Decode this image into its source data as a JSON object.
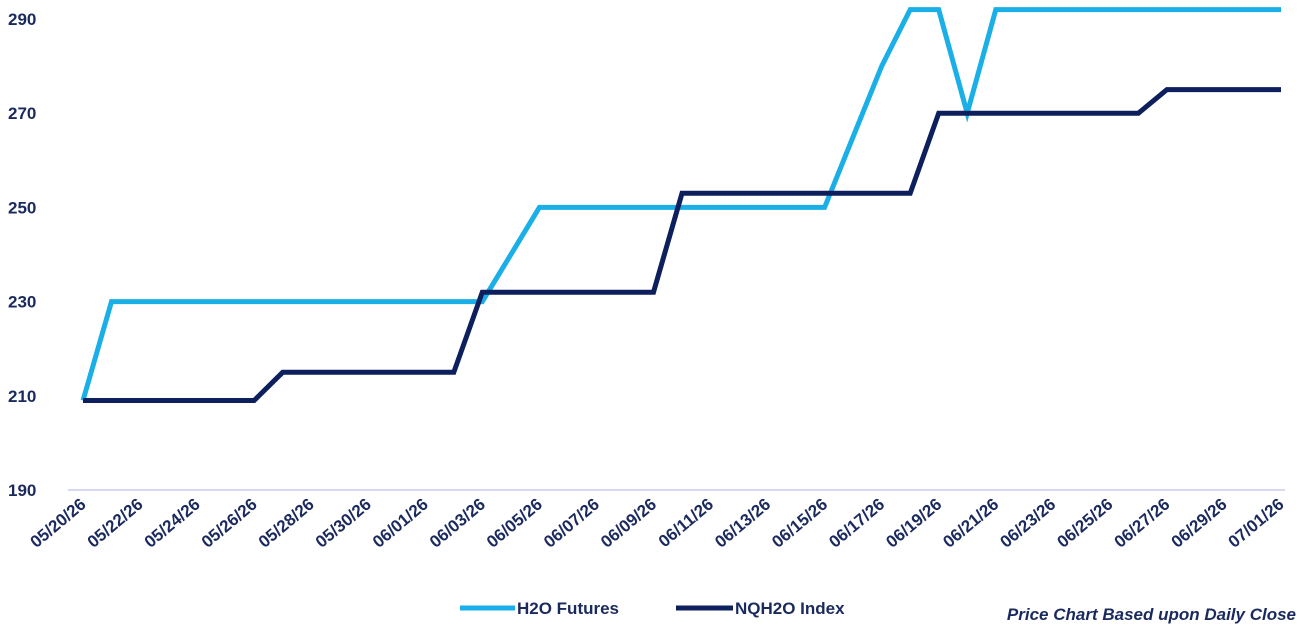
{
  "chart_data": {
    "type": "line",
    "x": [
      "05/20/26",
      "05/21/26",
      "05/22/26",
      "05/23/26",
      "05/24/26",
      "05/25/26",
      "05/26/26",
      "05/27/26",
      "05/28/26",
      "05/29/26",
      "05/30/26",
      "05/31/26",
      "06/01/26",
      "06/02/26",
      "06/03/26",
      "06/04/26",
      "06/05/26",
      "06/06/26",
      "06/07/26",
      "06/08/26",
      "06/09/26",
      "06/10/26",
      "06/11/26",
      "06/12/26",
      "06/13/26",
      "06/14/26",
      "06/15/26",
      "06/16/26",
      "06/17/26",
      "06/18/26",
      "06/19/26",
      "06/20/26",
      "06/21/26",
      "06/22/26",
      "06/23/26",
      "06/24/26",
      "06/25/26",
      "06/26/26",
      "06/27/26",
      "06/28/26",
      "06/29/26",
      "06/30/26",
      "07/01/26"
    ],
    "x_tick_labels": [
      "05/20/26",
      "05/22/26",
      "05/24/26",
      "05/26/26",
      "05/28/26",
      "05/30/26",
      "06/01/26",
      "06/03/26",
      "06/05/26",
      "06/07/26",
      "06/09/26",
      "06/11/26",
      "06/13/26",
      "06/15/26",
      "06/17/26",
      "06/19/26",
      "06/21/26",
      "06/23/26",
      "06/25/26",
      "06/27/26",
      "06/29/26",
      "07/01/26"
    ],
    "series": [
      {
        "name": "H2O  Futures",
        "color": "#1aafe6",
        "values": [
          209,
          230,
          230,
          230,
          230,
          230,
          230,
          230,
          230,
          230,
          230,
          230,
          230,
          230,
          230,
          240,
          250,
          250,
          250,
          250,
          250,
          250,
          250,
          250,
          250,
          250,
          250,
          265,
          280,
          292,
          292,
          270,
          292,
          292,
          292,
          292,
          292,
          292,
          292,
          292,
          292,
          292,
          292
        ]
      },
      {
        "name": "NQH2O Index",
        "color": "#0d1f5c",
        "values": [
          209,
          209,
          209,
          209,
          209,
          209,
          209,
          215,
          215,
          215,
          215,
          215,
          215,
          215,
          232,
          232,
          232,
          232,
          232,
          232,
          232,
          253,
          253,
          253,
          253,
          253,
          253,
          253,
          253,
          253,
          270,
          270,
          270,
          270,
          270,
          270,
          270,
          270,
          275,
          275,
          275,
          275,
          275
        ]
      }
    ],
    "y_ticks": [
      190,
      210,
      230,
      250,
      270,
      290
    ],
    "ylim": [
      190,
      292
    ],
    "title": "",
    "xlabel": "",
    "ylabel": "",
    "grid": false,
    "legend_position": "bottom-center",
    "annotation": "Price Chart Based upon Daily Close"
  }
}
